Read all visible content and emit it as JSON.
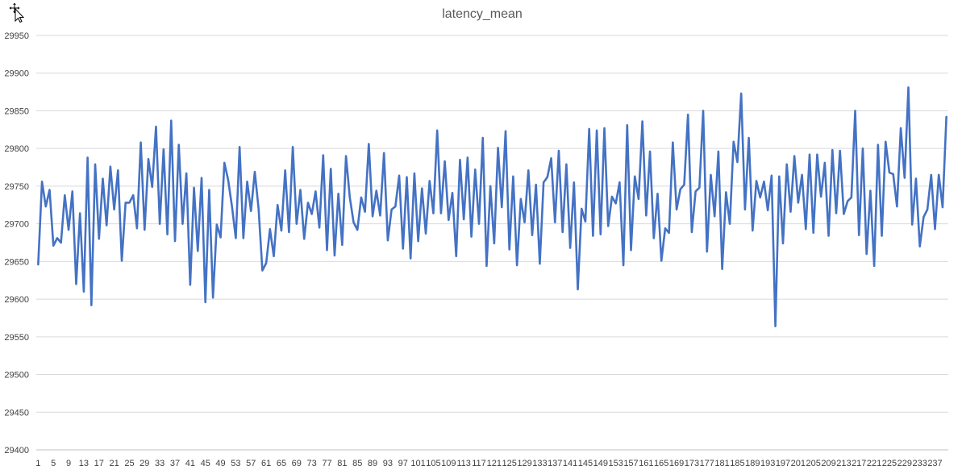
{
  "chart_data": {
    "type": "line",
    "title": "latency_mean",
    "xlabel": "",
    "ylabel": "",
    "ylim": [
      29400,
      29950
    ],
    "yticks": [
      29400,
      29450,
      29500,
      29550,
      29600,
      29650,
      29700,
      29750,
      29800,
      29850,
      29900,
      29950
    ],
    "x_start": 1,
    "x_end": 239,
    "x_tick_step": 4,
    "grid": true,
    "legend": "none",
    "series": [
      {
        "color": "#4472c4",
        "values": [
          29646,
          29756,
          29723,
          29745,
          29671,
          29681,
          29675,
          29738,
          29692,
          29743,
          29620,
          29714,
          29610,
          29788,
          29592,
          29779,
          29680,
          29760,
          29698,
          29776,
          29719,
          29771,
          29651,
          29728,
          29728,
          29738,
          29694,
          29808,
          29692,
          29786,
          29749,
          29829,
          29700,
          29799,
          29686,
          29837,
          29677,
          29805,
          29700,
          29767,
          29619,
          29748,
          29664,
          29761,
          29596,
          29745,
          29602,
          29699,
          29682,
          29781,
          29758,
          29723,
          29681,
          29802,
          29681,
          29756,
          29717,
          29769,
          29720,
          29638,
          29648,
          29693,
          29657,
          29725,
          29691,
          29771,
          29689,
          29802,
          29700,
          29745,
          29680,
          29728,
          29713,
          29743,
          29695,
          29791,
          29665,
          29773,
          29658,
          29740,
          29672,
          29790,
          29735,
          29702,
          29692,
          29735,
          29716,
          29806,
          29710,
          29744,
          29711,
          29794,
          29678,
          29719,
          29723,
          29764,
          29667,
          29762,
          29654,
          29767,
          29677,
          29747,
          29687,
          29757,
          29714,
          29824,
          29714,
          29783,
          29705,
          29741,
          29657,
          29785,
          29706,
          29788,
          29683,
          29772,
          29700,
          29814,
          29644,
          29750,
          29674,
          29801,
          29722,
          29823,
          29666,
          29763,
          29645,
          29733,
          29702,
          29771,
          29685,
          29752,
          29647,
          29755,
          29762,
          29787,
          29702,
          29797,
          29689,
          29779,
          29668,
          29755,
          29613,
          29720,
          29703,
          29826,
          29684,
          29824,
          29686,
          29827,
          29697,
          29736,
          29727,
          29755,
          29645,
          29831,
          29665,
          29763,
          29733,
          29836,
          29711,
          29796,
          29681,
          29740,
          29651,
          29694,
          29688,
          29808,
          29719,
          29746,
          29752,
          29845,
          29689,
          29743,
          29748,
          29850,
          29663,
          29765,
          29710,
          29796,
          29640,
          29742,
          29700,
          29809,
          29782,
          29873,
          29719,
          29814,
          29691,
          29757,
          29735,
          29756,
          29718,
          29764,
          29564,
          29763,
          29674,
          29779,
          29716,
          29790,
          29728,
          29765,
          29693,
          29792,
          29688,
          29792,
          29736,
          29781,
          29684,
          29798,
          29714,
          29797,
          29713,
          29730,
          29735,
          29850,
          29685,
          29800,
          29660,
          29744,
          29644,
          29805,
          29684,
          29809,
          29768,
          29766,
          29723,
          29827,
          29761,
          29881,
          29699,
          29760,
          29670,
          29709,
          29719,
          29765,
          29693,
          29765,
          29722,
          29842
        ]
      }
    ]
  },
  "icons": {
    "cursor": "move-cursor-icon"
  }
}
